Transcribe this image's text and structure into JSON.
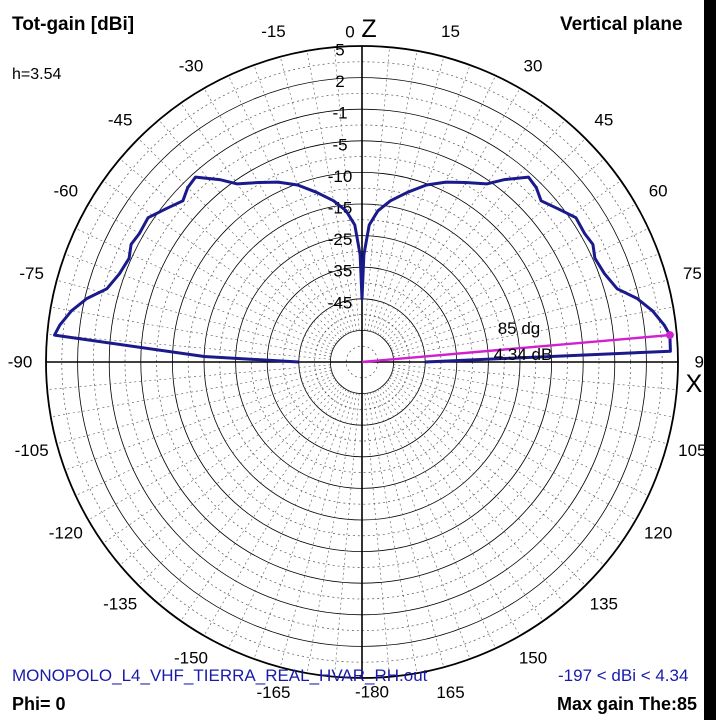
{
  "header": {
    "title": "Tot-gain [dBi]",
    "plane": "Vertical plane",
    "height": "h=3.54"
  },
  "footer": {
    "filename": "MONOPOLO_L4_VHF_TIERRA_REAL_HVAR_RH.out",
    "range": "-197 < dBi < 4.34",
    "phi": "Phi= 0",
    "max_gain": "Max gain The:85"
  },
  "colors": {
    "pattern": "#1a1a8c",
    "marker": "#d020d0",
    "grid": "#000000"
  },
  "chart_data": {
    "type": "polar-line",
    "title": "Tot-gain [dBi]",
    "plane": "Vertical plane",
    "angle_ticks": [
      "0",
      "15",
      "30",
      "45",
      "60",
      "75",
      "90",
      "105",
      "120",
      "135",
      "150",
      "165",
      "-180",
      "-165",
      "-150",
      "-135",
      "-120",
      "-105",
      "-90",
      "-75",
      "-60",
      "-45",
      "-30",
      "-15"
    ],
    "axis_labels": {
      "zenith": "Z",
      "horizontal": "X"
    },
    "radial_ticks": [
      "5",
      "2",
      "-1",
      "-5",
      "-10",
      "-15",
      "-25",
      "-35",
      "-45"
    ],
    "radial_tick_values": [
      5,
      2,
      -1,
      -5,
      -10,
      -15,
      -25,
      -35,
      -45
    ],
    "series": [
      {
        "theta_deg": [
          -90,
          -88,
          -85,
          -83,
          -80,
          -77,
          -74,
          -70,
          -66,
          -63,
          -60,
          -56,
          -52,
          -48,
          -45,
          -42,
          -38,
          -35,
          -30,
          -25,
          -20,
          -15,
          -10,
          -6,
          -3,
          -1,
          0,
          1,
          3,
          6,
          10,
          15,
          20,
          25,
          30,
          35,
          38,
          42,
          45,
          48,
          52,
          56,
          60,
          63,
          66,
          70,
          74,
          77,
          80,
          83,
          85,
          88,
          90
        ],
        "gain_dbi": [
          -45,
          -15,
          4.3,
          3.9,
          3.0,
          1.8,
          0.2,
          -0.5,
          -0.8,
          -0.4,
          -0.6,
          -0.5,
          -1.5,
          -2.5,
          -1.8,
          -1.5,
          -3.7,
          -5.6,
          -7.2,
          -8.6,
          -10.2,
          -12.2,
          -14.1,
          -16.9,
          -21.6,
          -31,
          -45,
          -31,
          -21.6,
          -16.9,
          -14.1,
          -12.2,
          -10.2,
          -8.6,
          -7.2,
          -5.6,
          -3.7,
          -1.5,
          -1.8,
          -2.5,
          -1.5,
          -0.5,
          -0.6,
          -0.4,
          -0.8,
          -0.5,
          0.2,
          1.8,
          3.0,
          3.9,
          4.34,
          4.3,
          -45
        ]
      }
    ],
    "marker": {
      "theta_deg": 85,
      "gain_dbi": 4.34,
      "angle_label": "85 dg",
      "gain_label": "4.34 dB"
    }
  }
}
